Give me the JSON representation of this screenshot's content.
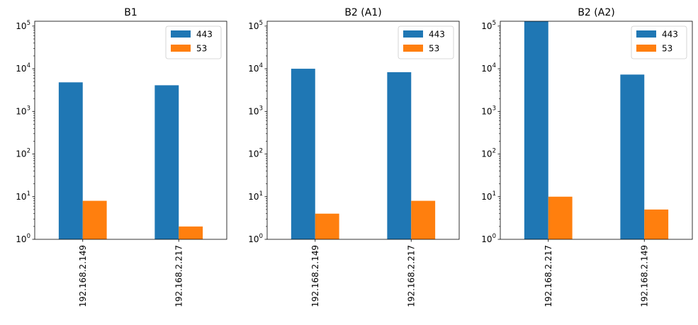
{
  "chart_data": [
    {
      "type": "bar",
      "title": "B1",
      "categories": [
        "192.168.2.149",
        "192.168.2.217"
      ],
      "series": [
        {
          "name": "443",
          "color": "#1f77b4",
          "values": [
            4800,
            4100
          ]
        },
        {
          "name": "53",
          "color": "#ff7f0e",
          "values": [
            8,
            2
          ]
        }
      ],
      "yscale": "log",
      "ylim": [
        1,
        130000
      ],
      "yticks": [
        1,
        10,
        100,
        1000,
        10000,
        100000
      ],
      "legend": "top-right",
      "grid": false
    },
    {
      "type": "bar",
      "title": "B2 (A1)",
      "categories": [
        "192.168.2.149",
        "192.168.2.217"
      ],
      "series": [
        {
          "name": "443",
          "color": "#1f77b4",
          "values": [
            10000,
            8300
          ]
        },
        {
          "name": "53",
          "color": "#ff7f0e",
          "values": [
            4,
            8
          ]
        }
      ],
      "yscale": "log",
      "ylim": [
        1,
        130000
      ],
      "yticks": [
        1,
        10,
        100,
        1000,
        10000,
        100000
      ],
      "legend": "top-right",
      "grid": false
    },
    {
      "type": "bar",
      "title": "B2 (A2)",
      "categories": [
        "192.168.2.217",
        "192.168.2.149"
      ],
      "series": [
        {
          "name": "443",
          "color": "#1f77b4",
          "values": [
            130000,
            7300
          ]
        },
        {
          "name": "53",
          "color": "#ff7f0e",
          "values": [
            10,
            5
          ]
        }
      ],
      "yscale": "log",
      "ylim": [
        1,
        130000
      ],
      "yticks": [
        1,
        10,
        100,
        1000,
        10000,
        100000
      ],
      "legend": "top-right",
      "grid": false
    }
  ]
}
